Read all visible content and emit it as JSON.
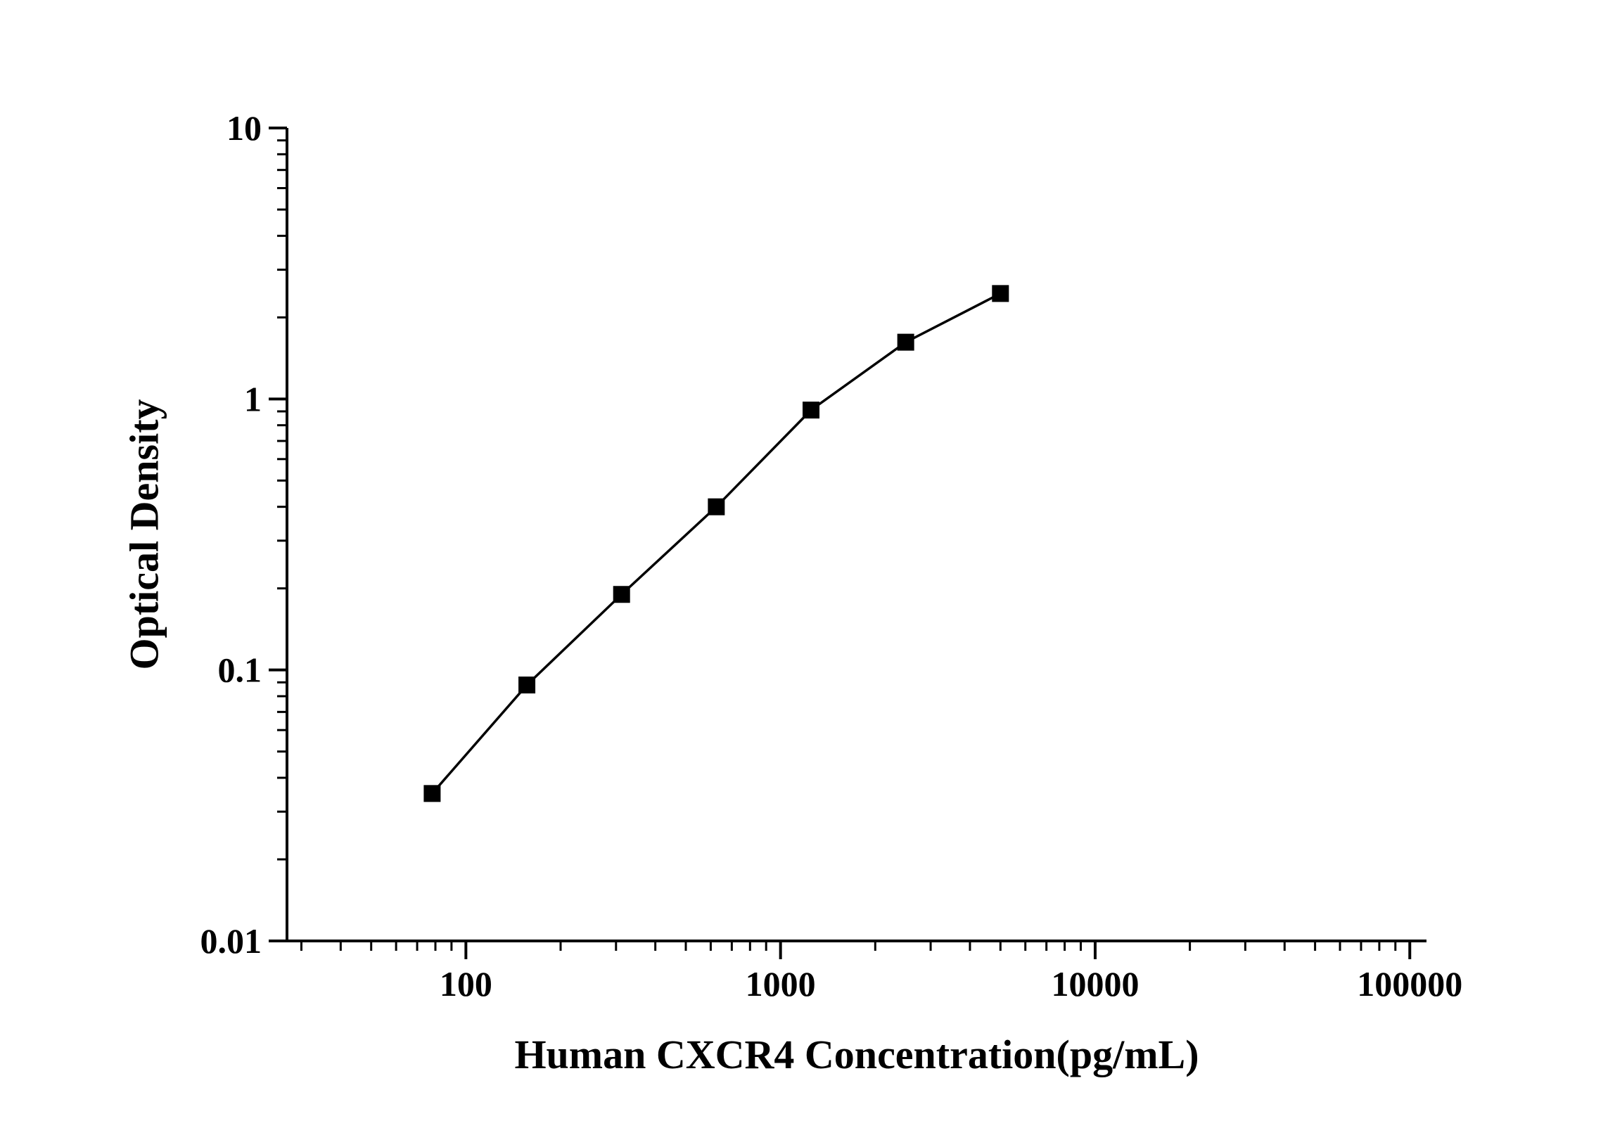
{
  "chart_data": {
    "type": "line",
    "title": "",
    "xlabel": "Human CXCR4 Concentration(pg/mL)",
    "ylabel": "Optical Density",
    "x_scale": "log",
    "y_scale": "log",
    "xlim": [
      27,
      113000
    ],
    "ylim": [
      0.01,
      10
    ],
    "x_major_ticks": [
      100,
      1000,
      10000,
      100000
    ],
    "x_tick_labels": [
      "100",
      "1000",
      "10000",
      "100000"
    ],
    "y_major_ticks": [
      0.01,
      0.1,
      1,
      10
    ],
    "y_tick_labels": [
      "0.01",
      "0.1",
      "1",
      "10"
    ],
    "grid": false,
    "legend": "none",
    "background_color": "#ffffff",
    "line_color": "#000000",
    "marker_color": "#000000",
    "marker_shape": "square",
    "series": [
      {
        "name": "standard-curve",
        "x": [
          78.125,
          156.25,
          312.5,
          625,
          1250,
          2500,
          5000
        ],
        "y": [
          0.035,
          0.088,
          0.19,
          0.4,
          0.91,
          1.62,
          2.45
        ]
      }
    ]
  }
}
